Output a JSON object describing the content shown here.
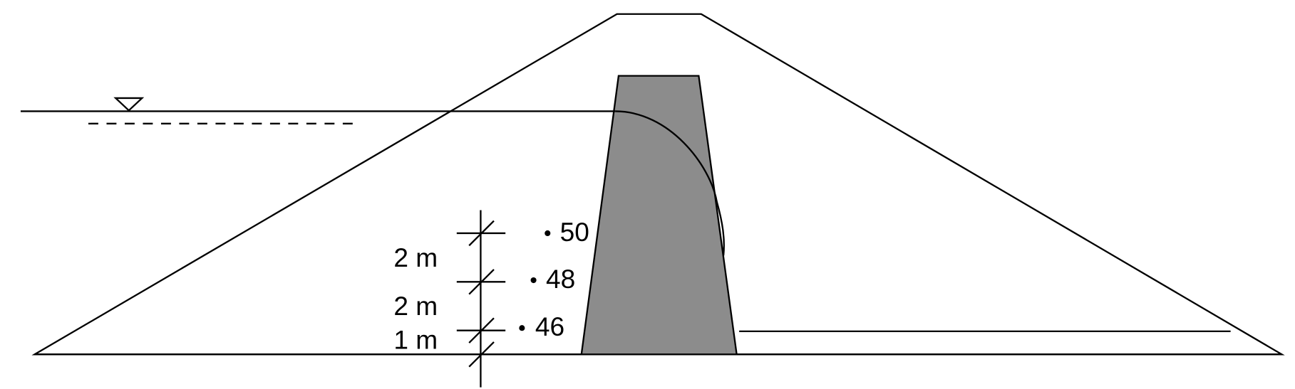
{
  "dimensions": [
    {
      "label": "2 m"
    },
    {
      "label": "2 m"
    },
    {
      "label": "1 m"
    }
  ],
  "points": [
    {
      "label": "50"
    },
    {
      "label": "48"
    },
    {
      "label": "46"
    }
  ]
}
